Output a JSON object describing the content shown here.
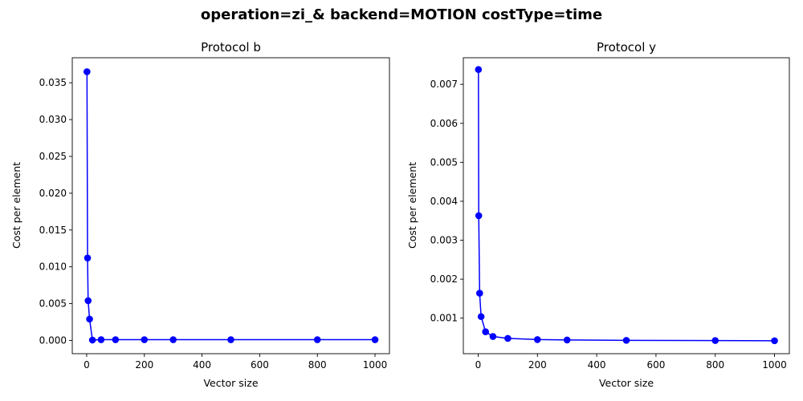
{
  "figure": {
    "title": "operation=zi_& backend=MOTION costType=time"
  },
  "colors": {
    "series": "#0000ff",
    "axes": "#000000",
    "background": "#ffffff"
  },
  "chart_data": [
    {
      "type": "line",
      "title": "Protocol b",
      "xlabel": "Vector size",
      "ylabel": "Cost per element",
      "xlim": [
        -50,
        1050
      ],
      "ylim": [
        -0.0018,
        0.0384
      ],
      "xticks": [
        0,
        200,
        400,
        600,
        800,
        1000
      ],
      "xtick_labels": [
        "0",
        "200",
        "400",
        "600",
        "800",
        "1000"
      ],
      "yticks": [
        0,
        0.005,
        0.01,
        0.015,
        0.02,
        0.025,
        0.03,
        0.035
      ],
      "ytick_labels": [
        "0.000",
        "0.005",
        "0.010",
        "0.015",
        "0.020",
        "0.025",
        "0.030",
        "0.035"
      ],
      "grid": false,
      "marker": "circle",
      "series": [
        {
          "x": [
            1,
            3,
            5,
            10,
            20,
            50,
            100,
            200,
            300,
            500,
            800,
            1000
          ],
          "y": [
            0.0365,
            0.0112,
            0.0054,
            0.0029,
            5e-05,
            0.0001,
            0.0001,
            0.0001,
            0.0001,
            0.0001,
            0.0001,
            0.0001
          ]
        }
      ]
    },
    {
      "type": "line",
      "title": "Protocol y",
      "xlabel": "Vector size",
      "ylabel": "Cost per element",
      "xlim": [
        -50,
        1050
      ],
      "ylim": [
        8.8e-05,
        0.007683
      ],
      "xticks": [
        0,
        200,
        400,
        600,
        800,
        1000
      ],
      "xtick_labels": [
        "0",
        "200",
        "400",
        "600",
        "800",
        "1000"
      ],
      "yticks": [
        0.001,
        0.002,
        0.003,
        0.004,
        0.005,
        0.006,
        0.007
      ],
      "ytick_labels": [
        "0.001",
        "0.002",
        "0.003",
        "0.004",
        "0.005",
        "0.006",
        "0.007"
      ],
      "grid": false,
      "marker": "circle",
      "series": [
        {
          "x": [
            1,
            2,
            5,
            10,
            25,
            50,
            100,
            200,
            300,
            500,
            800,
            1000
          ],
          "y": [
            0.00738,
            0.00363,
            0.00164,
            0.00104,
            0.00065,
            0.00053,
            0.00048,
            0.00045,
            0.00044,
            0.00043,
            0.000425,
            0.00042
          ]
        }
      ]
    }
  ]
}
